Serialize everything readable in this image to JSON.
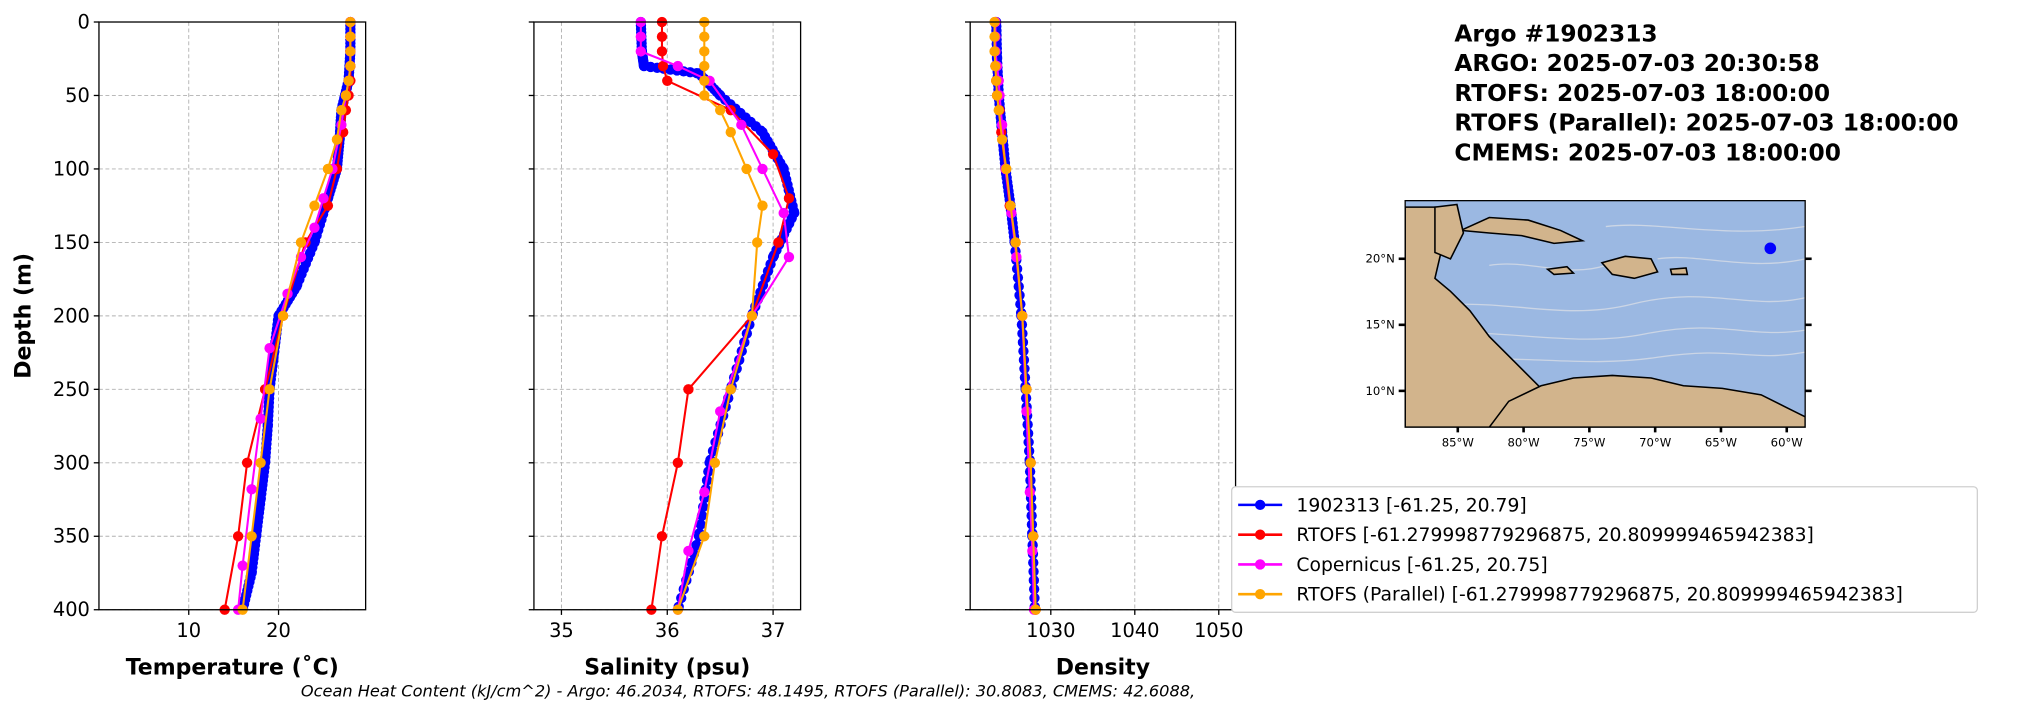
{
  "chart_data": [
    {
      "type": "line",
      "xlabel": "Temperature (˚C)",
      "ylabel": "Depth (m)",
      "xlim": [
        0,
        29.7
      ],
      "ylim": [
        400,
        0
      ],
      "xticks": [
        "10",
        "20"
      ],
      "xtick_values": [
        10,
        20
      ],
      "yticks": [
        "0",
        "50",
        "100",
        "150",
        "200",
        "250",
        "300",
        "350",
        "400"
      ],
      "ytick_values": [
        0,
        50,
        100,
        150,
        200,
        250,
        300,
        350,
        400
      ],
      "grid": true,
      "series": [
        {
          "name": "1902313",
          "color": "#0000ff",
          "depth": [
            0,
            20,
            40,
            60,
            80,
            100,
            120,
            150,
            180,
            200,
            225,
            250,
            275,
            300,
            325,
            350,
            375,
            400
          ],
          "values": [
            28,
            28,
            27.8,
            27,
            26.8,
            26.5,
            25.5,
            24,
            22,
            20,
            19.5,
            19,
            18.8,
            18.5,
            18,
            17.5,
            17,
            16
          ]
        },
        {
          "name": "RTOFS",
          "color": "#ff0000",
          "depth": [
            0,
            10,
            20,
            30,
            40,
            50,
            60,
            75,
            100,
            125,
            150,
            200,
            250,
            300,
            350,
            400
          ],
          "values": [
            28,
            28,
            28,
            28,
            28,
            27.8,
            27.5,
            27.2,
            26.5,
            25.5,
            23,
            20.5,
            18.5,
            16.5,
            15.5,
            14
          ]
        },
        {
          "name": "Copernicus",
          "color": "#ff00ff",
          "depth": [
            0,
            10,
            20,
            30,
            40,
            50,
            70,
            100,
            120,
            140,
            160,
            185,
            222,
            270,
            318,
            370,
            400
          ],
          "values": [
            28,
            28,
            28,
            28,
            27.8,
            27.5,
            27,
            26,
            25,
            24,
            22.5,
            21,
            19,
            18,
            17,
            16,
            15.5
          ]
        },
        {
          "name": "RTOFS (Parallel)",
          "color": "#ffa500",
          "depth": [
            0,
            10,
            20,
            30,
            40,
            50,
            60,
            80,
            100,
            125,
            150,
            200,
            250,
            300,
            350,
            400
          ],
          "values": [
            28,
            28,
            28,
            28,
            27.8,
            27.5,
            27,
            26.5,
            25.5,
            24,
            22.5,
            20.5,
            19,
            18,
            17,
            16
          ]
        }
      ]
    },
    {
      "type": "line",
      "xlabel": "Salinity (psu)",
      "xlim": [
        34.74,
        37.26
      ],
      "ylim": [
        400,
        0
      ],
      "xticks": [
        "35",
        "36",
        "37"
      ],
      "xtick_values": [
        35,
        36,
        37
      ],
      "grid": true,
      "series": [
        {
          "name": "1902313",
          "color": "#0000ff",
          "depth": [
            0,
            20,
            30,
            35,
            50,
            75,
            100,
            130,
            160,
            200,
            250,
            300,
            350,
            400
          ],
          "values": [
            35.75,
            35.76,
            35.78,
            36.3,
            36.5,
            36.9,
            37.1,
            37.2,
            37.0,
            36.8,
            36.6,
            36.4,
            36.3,
            36.1
          ]
        },
        {
          "name": "RTOFS",
          "color": "#ff0000",
          "depth": [
            0,
            10,
            20,
            30,
            40,
            60,
            90,
            120,
            150,
            200,
            250,
            300,
            350,
            400
          ],
          "values": [
            35.95,
            35.95,
            35.95,
            35.96,
            36.0,
            36.6,
            37.0,
            37.15,
            37.05,
            36.8,
            36.2,
            36.1,
            35.95,
            35.85
          ]
        },
        {
          "name": "Copernicus",
          "color": "#ff00ff",
          "depth": [
            0,
            10,
            20,
            30,
            40,
            70,
            100,
            130,
            160,
            200,
            265,
            320,
            360,
            400
          ],
          "values": [
            35.75,
            35.75,
            35.75,
            36.1,
            36.4,
            36.7,
            36.9,
            37.1,
            37.15,
            36.8,
            36.5,
            36.35,
            36.2,
            36.1
          ]
        },
        {
          "name": "RTOFS (Parallel)",
          "color": "#ffa500",
          "depth": [
            0,
            10,
            20,
            30,
            40,
            50,
            60,
            75,
            100,
            125,
            150,
            200,
            250,
            300,
            350,
            400
          ],
          "values": [
            36.35,
            36.35,
            36.35,
            36.35,
            36.35,
            36.35,
            36.5,
            36.6,
            36.75,
            36.9,
            36.85,
            36.8,
            36.6,
            36.45,
            36.35,
            36.1
          ]
        }
      ]
    },
    {
      "type": "line",
      "xlabel": "Density",
      "xlim": [
        1020.4,
        1052
      ],
      "ylim": [
        400,
        0
      ],
      "xticks": [
        "1030",
        "1040",
        "1050"
      ],
      "xtick_values": [
        1030,
        1040,
        1050
      ],
      "grid": true,
      "series": [
        {
          "name": "1902313",
          "color": "#0000ff",
          "depth": [
            0,
            25,
            50,
            75,
            100,
            125,
            150,
            200,
            250,
            300,
            350,
            400
          ],
          "values": [
            1023.5,
            1023.6,
            1023.8,
            1024.2,
            1024.6,
            1025.2,
            1025.7,
            1026.5,
            1027.0,
            1027.5,
            1027.8,
            1028.1
          ]
        },
        {
          "name": "RTOFS",
          "color": "#ff0000",
          "depth": [
            0,
            10,
            20,
            30,
            40,
            50,
            60,
            75,
            100,
            125,
            150,
            200,
            250,
            300,
            350,
            400
          ],
          "values": [
            1023.4,
            1023.4,
            1023.4,
            1023.4,
            1023.5,
            1023.6,
            1023.9,
            1024.1,
            1024.6,
            1025.1,
            1025.8,
            1026.6,
            1027.1,
            1027.6,
            1027.9,
            1028.2
          ]
        },
        {
          "name": "Copernicus",
          "color": "#ff00ff",
          "depth": [
            0,
            10,
            20,
            30,
            40,
            50,
            70,
            100,
            130,
            160,
            200,
            265,
            320,
            360,
            400
          ],
          "values": [
            1023.4,
            1023.4,
            1023.4,
            1023.6,
            1023.8,
            1023.9,
            1024.2,
            1024.6,
            1025.3,
            1025.9,
            1026.6,
            1027.1,
            1027.5,
            1027.8,
            1028.0
          ]
        },
        {
          "name": "RTOFS (Parallel)",
          "color": "#ffa500",
          "depth": [
            0,
            10,
            20,
            30,
            40,
            50,
            60,
            80,
            100,
            125,
            150,
            200,
            250,
            300,
            350,
            400
          ],
          "values": [
            1023.3,
            1023.3,
            1023.3,
            1023.4,
            1023.5,
            1023.6,
            1023.8,
            1024.2,
            1024.7,
            1025.2,
            1025.8,
            1026.6,
            1027.1,
            1027.6,
            1027.9,
            1028.2
          ]
        }
      ]
    }
  ],
  "header": {
    "lines": [
      "Argo #1902313",
      "ARGO:  2025-07-03 20:30:58",
      "RTOFS: 2025-07-03 18:00:00",
      "RTOFS (Parallel): 2025-07-03 18:00:00",
      "CMEMS: 2025-07-03 18:00:00"
    ]
  },
  "map": {
    "lon_range": [
      -89,
      -58.6
    ],
    "lat_range": [
      7.25,
      24.4
    ],
    "lon_ticks": [
      "85°W",
      "80°W",
      "75°W",
      "70°W",
      "65°W",
      "60°W"
    ],
    "lon_tick_values": [
      -85,
      -80,
      -75,
      -70,
      -65,
      -60
    ],
    "lat_ticks": [
      "20°N",
      "15°N",
      "10°N"
    ],
    "lat_tick_values": [
      20,
      15,
      10
    ],
    "float_position": [
      -61.25,
      20.79
    ],
    "ocean_color": "#9bb8e2",
    "land_color": "#d2b48c",
    "marker_color": "#0000ff"
  },
  "legend": {
    "items": [
      {
        "label": "1902313 [-61.25, 20.79]",
        "color": "#0000ff"
      },
      {
        "label": "RTOFS [-61.279998779296875, 20.809999465942383]",
        "color": "#ff0000"
      },
      {
        "label": "Copernicus [-61.25, 20.75]",
        "color": "#ff00ff"
      },
      {
        "label": "RTOFS (Parallel) [-61.279998779296875, 20.809999465942383]",
        "color": "#ffa500"
      }
    ]
  },
  "footer": "Ocean Heat Content (kJ/cm^2) - Argo: 46.2034,  RTOFS: 48.1495,  RTOFS (Parallel): 30.8083,  CMEMS: 42.6088,"
}
